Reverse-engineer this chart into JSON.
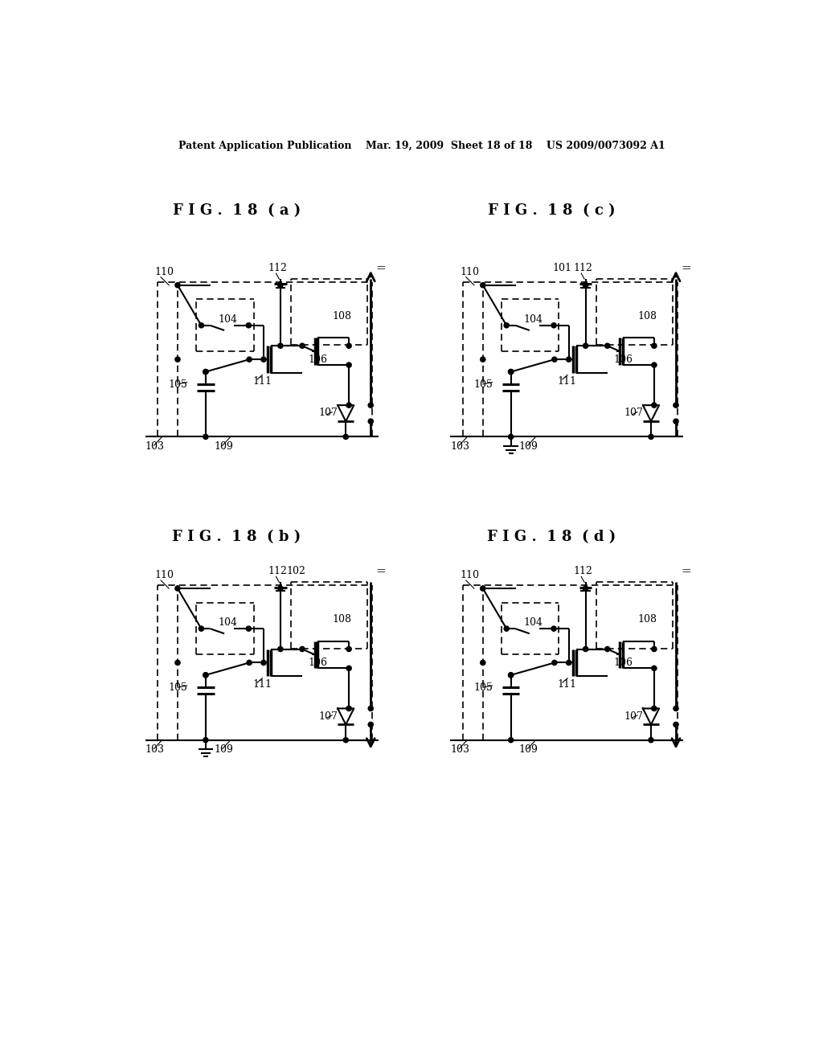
{
  "title_header": "Patent Application Publication    Mar. 19, 2009  Sheet 18 of 18    US 2009/0073092 A1",
  "fig_titles": [
    "F I G .  1 8  ( a )",
    "F I G .  1 8  ( c )",
    "F I G .  1 8  ( b )",
    "F I G .  1 8  ( d )"
  ],
  "background": "#ffffff",
  "line_color": "#000000",
  "font_size_header": 9,
  "font_size_fig": 13,
  "font_size_label": 9
}
